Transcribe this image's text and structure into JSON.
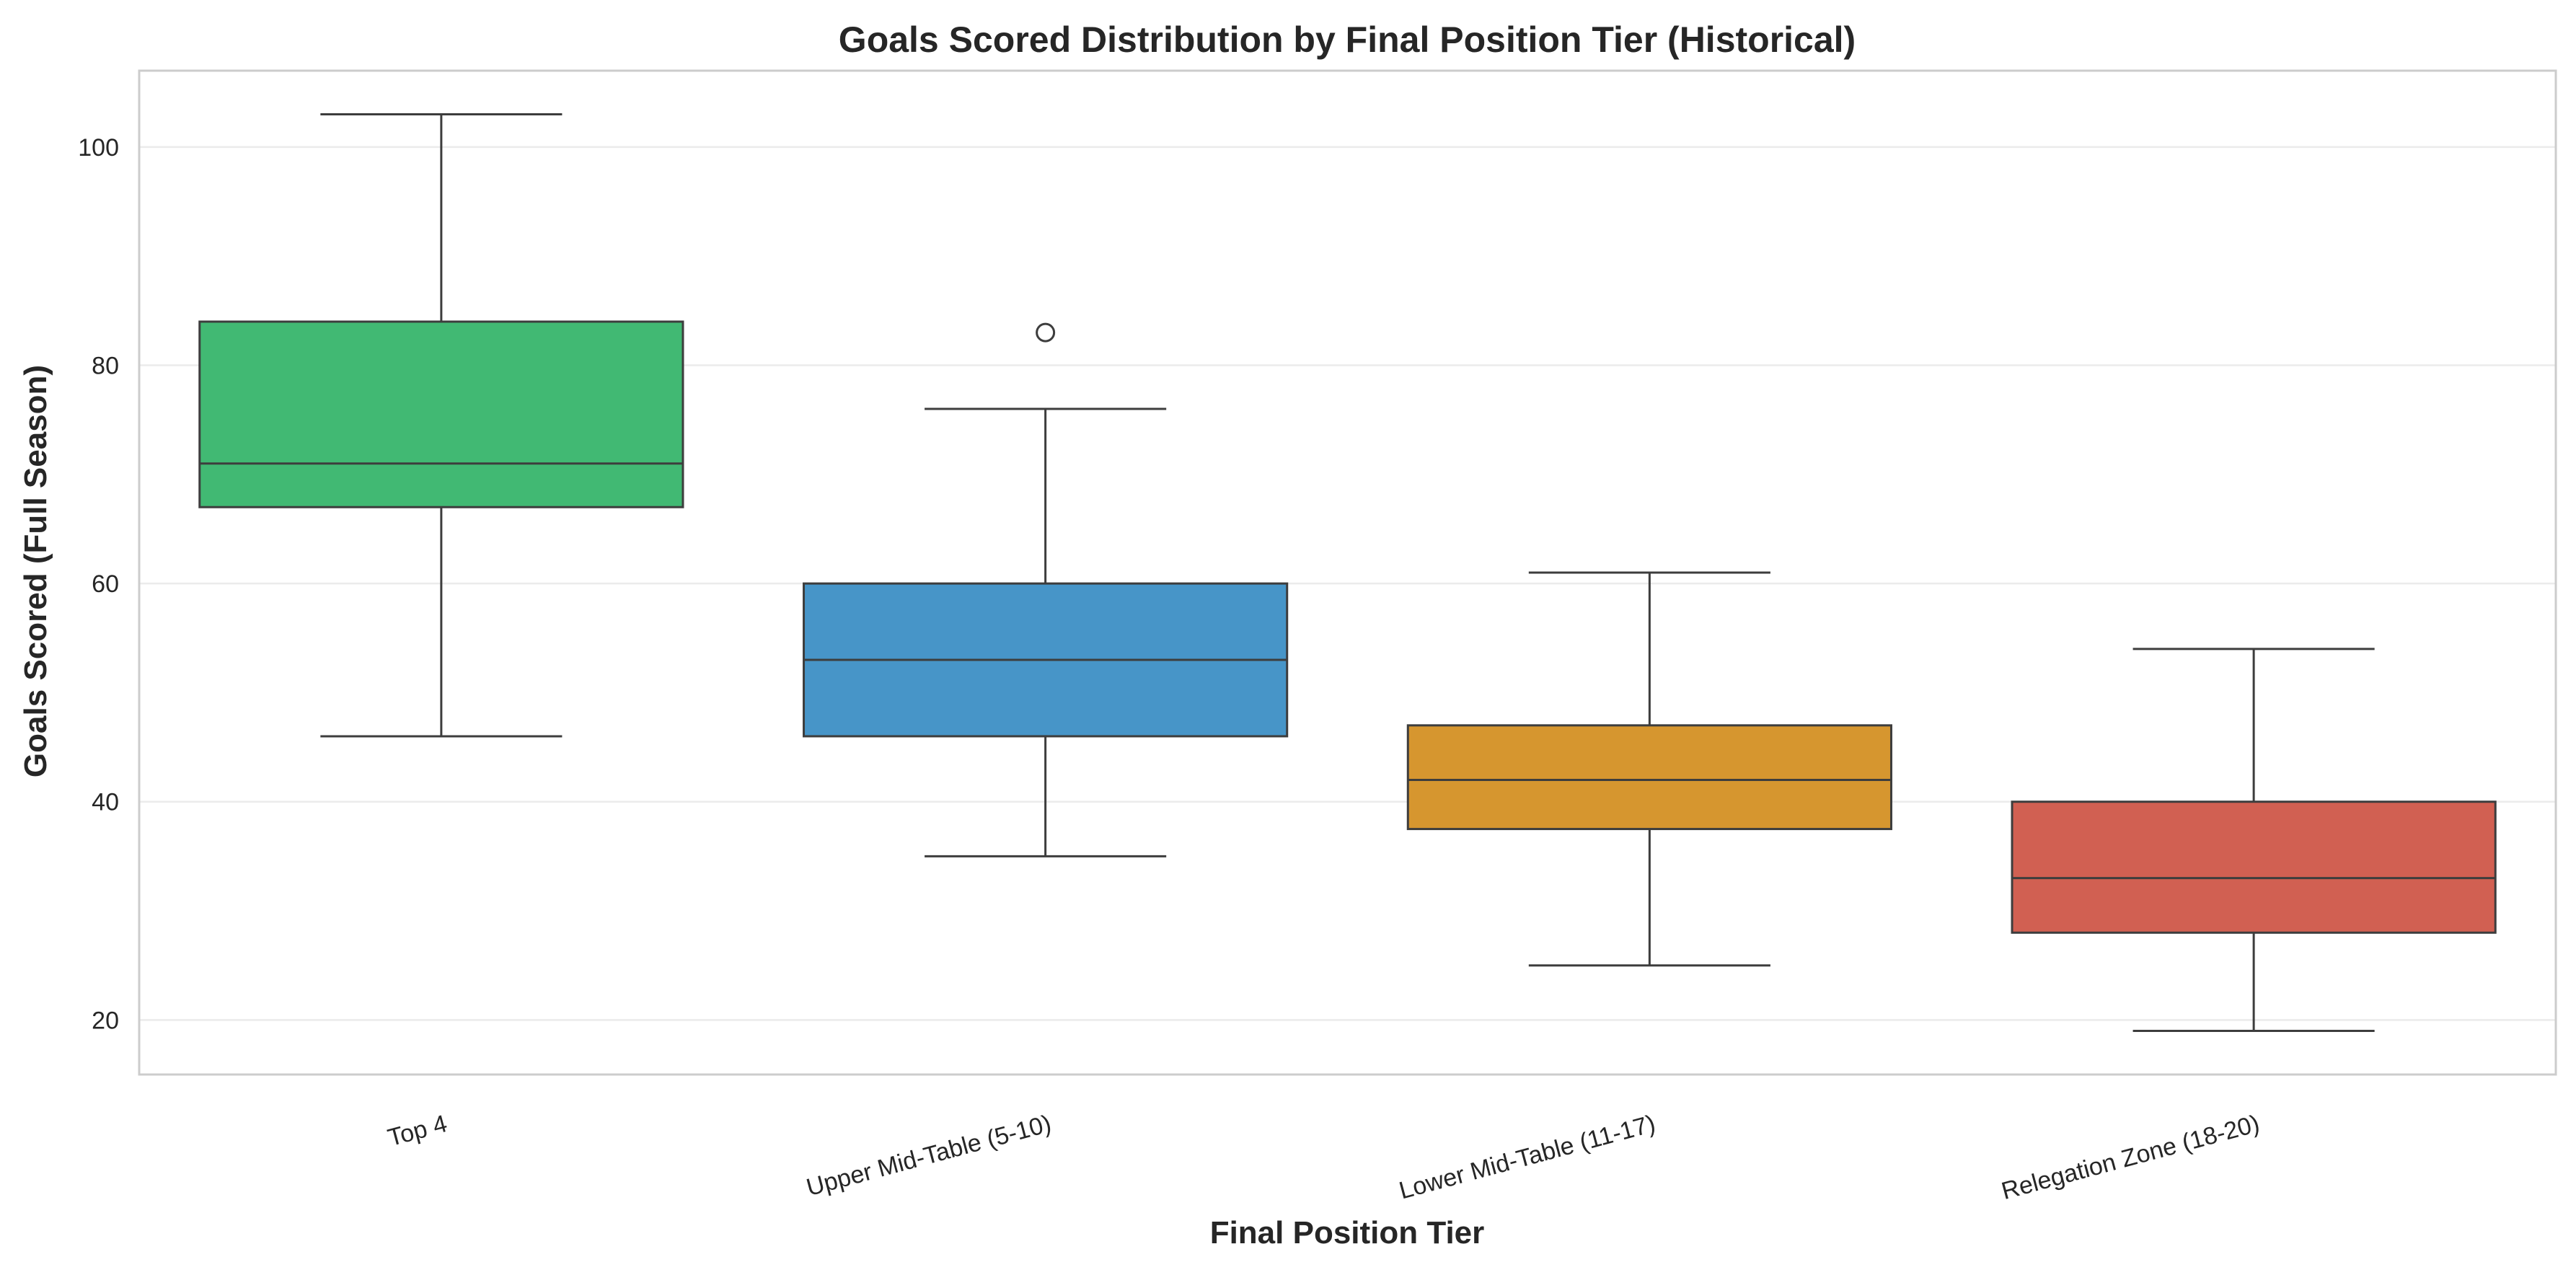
{
  "chart_data": {
    "type": "box",
    "title": "Goals Scored Distribution by Final Position Tier (Historical)",
    "xlabel": "Final Position Tier",
    "ylabel": "Goals Scored (Full Season)",
    "ylim": [
      15,
      107
    ],
    "yticks": [
      20,
      40,
      60,
      80,
      100
    ],
    "grid": "horizontal",
    "categories": [
      "Top 4",
      "Upper Mid-Table (5-10)",
      "Lower Mid-Table (11-17)",
      "Relegation Zone (18-20)"
    ],
    "boxes": [
      {
        "category": "Top 4",
        "whisker_low": 46,
        "q1": 67,
        "median": 71,
        "q3": 84,
        "whisker_high": 103,
        "outliers": []
      },
      {
        "category": "Upper Mid-Table (5-10)",
        "whisker_low": 35,
        "q1": 46,
        "median": 53,
        "q3": 60,
        "whisker_high": 76,
        "outliers": [
          83
        ]
      },
      {
        "category": "Lower Mid-Table (11-17)",
        "whisker_low": 25,
        "q1": 37.5,
        "median": 42,
        "q3": 47,
        "whisker_high": 61,
        "outliers": []
      },
      {
        "category": "Relegation Zone (18-20)",
        "whisker_low": 19,
        "q1": 28,
        "median": 33,
        "q3": 40,
        "whisker_high": 54,
        "outliers": []
      }
    ],
    "colors": [
      "#41b973",
      "#4795c8",
      "#d6962f",
      "#d16052"
    ],
    "line_color": "#3d3d3d",
    "grid_color": "#ebebeb",
    "frame_color": "#cccccc"
  }
}
